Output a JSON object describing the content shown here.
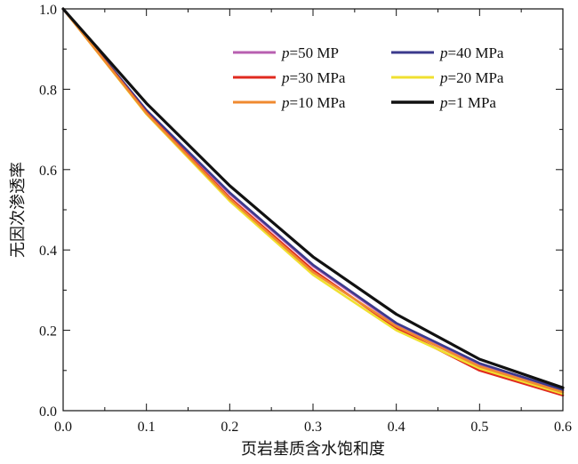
{
  "chart_data": {
    "type": "line",
    "title": "",
    "xlabel": "页岩基质含水饱和度",
    "ylabel": "无因次渗透率",
    "xlim": [
      0.0,
      0.6
    ],
    "ylim": [
      0.0,
      1.0
    ],
    "x_ticks": [
      "0.0",
      "0.1",
      "0.2",
      "0.3",
      "0.4",
      "0.5",
      "0.6"
    ],
    "y_ticks": [
      "0.0",
      "0.2",
      "0.4",
      "0.6",
      "0.8",
      "1.0"
    ],
    "grid": false,
    "legend_position": "top-right",
    "x": [
      0.0,
      0.1,
      0.2,
      0.3,
      0.4,
      0.5,
      0.6
    ],
    "series": [
      {
        "name": "50 MP",
        "prefix": "p=",
        "color": "#b85fb0",
        "values": [
          1.0,
          0.746,
          0.54,
          0.36,
          0.215,
          0.115,
          0.05
        ]
      },
      {
        "name": "40 MPa",
        "prefix": "p=",
        "color": "#3b3a8c",
        "values": [
          1.0,
          0.748,
          0.543,
          0.363,
          0.218,
          0.118,
          0.052
        ]
      },
      {
        "name": "30 MPa",
        "prefix": "p=",
        "color": "#e02a1f",
        "values": [
          1.0,
          0.742,
          0.53,
          0.35,
          0.205,
          0.1,
          0.038
        ]
      },
      {
        "name": "20 MPa",
        "prefix": "p=",
        "color": "#f0e030",
        "values": [
          1.0,
          0.738,
          0.522,
          0.338,
          0.2,
          0.105,
          0.042
        ]
      },
      {
        "name": "10 MPa",
        "prefix": "p=",
        "color": "#f08a30",
        "values": [
          1.0,
          0.74,
          0.527,
          0.345,
          0.21,
          0.11,
          0.046
        ]
      },
      {
        "name": "1 MPa",
        "prefix": "p=",
        "color": "#111111",
        "values": [
          1.0,
          0.765,
          0.56,
          0.383,
          0.24,
          0.128,
          0.057
        ]
      }
    ]
  }
}
